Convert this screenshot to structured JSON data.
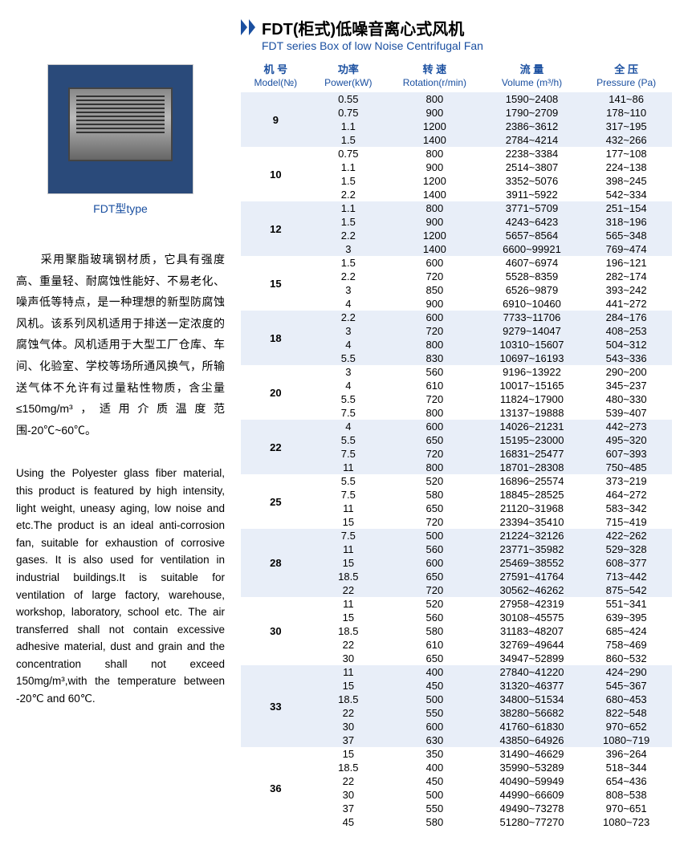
{
  "title_cn": "FDT(柜式)低噪音离心式风机",
  "title_en": "FDT series Box of low Noise Centrifugal Fan",
  "product_label": "FDT型type",
  "desc_cn": "　　采用聚脂玻璃钢材质，它具有强度高、重量轻、耐腐蚀性能好、不易老化、噪声低等特点，是一种理想的新型防腐蚀风机。该系列风机适用于排送一定浓度的腐蚀气体。风机适用于大型工厂仓库、车间、化验室、学校等场所通风换气，所输送气体不允许有过量粘性物质，含尘量≤150mg/m³，适用介质温度范围-20℃~60℃。",
  "desc_en": "Using the Polyester glass fiber material, this product is featured by high intensity, light weight, uneasy aging, low noise and etc.The product is an ideal anti-corrosion fan, suitable for exhaustion of corrosive gases. It is also used for ventilation in industrial buildings.It is suitable for ventilation of large factory, warehouse, workshop, laboratory, school etc. The air transferred shall not contain excessive adhesive material, dust and grain and the concentration shall not exceed 150mg/m³,with the temperature between -20℃ and 60℃.",
  "columns": [
    {
      "cn": "机 号",
      "en": "Model(№)"
    },
    {
      "cn": "功率",
      "en": "Power(kW)"
    },
    {
      "cn": "转 速",
      "en": "Rotation(r/min)"
    },
    {
      "cn": "流 量",
      "en": "Volume (m³/h)"
    },
    {
      "cn": "全 压",
      "en": "Pressure (Pa)"
    }
  ],
  "colors": {
    "accent": "#1a4fa0",
    "stripe_a": "#e8eef8",
    "stripe_b": "#ffffff"
  },
  "groups": [
    {
      "model": "9",
      "rows": [
        {
          "power": "0.55",
          "rot": "800",
          "vol": "1590~2408",
          "pres": "141~86"
        },
        {
          "power": "0.75",
          "rot": "900",
          "vol": "1790~2709",
          "pres": "178~110"
        },
        {
          "power": "1.1",
          "rot": "1200",
          "vol": "2386~3612",
          "pres": "317~195"
        },
        {
          "power": "1.5",
          "rot": "1400",
          "vol": "2784~4214",
          "pres": "432~266"
        }
      ]
    },
    {
      "model": "10",
      "rows": [
        {
          "power": "0.75",
          "rot": "800",
          "vol": "2238~3384",
          "pres": "177~108"
        },
        {
          "power": "1.1",
          "rot": "900",
          "vol": "2514~3807",
          "pres": "224~138"
        },
        {
          "power": "1.5",
          "rot": "1200",
          "vol": "3352~5076",
          "pres": "398~245"
        },
        {
          "power": "2.2",
          "rot": "1400",
          "vol": "3911~5922",
          "pres": "542~334"
        }
      ]
    },
    {
      "model": "12",
      "rows": [
        {
          "power": "1.1",
          "rot": "800",
          "vol": "3771~5709",
          "pres": "251~154"
        },
        {
          "power": "1.5",
          "rot": "900",
          "vol": "4243~6423",
          "pres": "318~196"
        },
        {
          "power": "2.2",
          "rot": "1200",
          "vol": "5657~8564",
          "pres": "565~348"
        },
        {
          "power": "3",
          "rot": "1400",
          "vol": "6600~99921",
          "pres": "769~474"
        }
      ]
    },
    {
      "model": "15",
      "rows": [
        {
          "power": "1.5",
          "rot": "600",
          "vol": "4607~6974",
          "pres": "196~121"
        },
        {
          "power": "2.2",
          "rot": "720",
          "vol": "5528~8359",
          "pres": "282~174"
        },
        {
          "power": "3",
          "rot": "850",
          "vol": "6526~9879",
          "pres": "393~242"
        },
        {
          "power": "4",
          "rot": "900",
          "vol": "6910~10460",
          "pres": "441~272"
        }
      ]
    },
    {
      "model": "18",
      "rows": [
        {
          "power": "2.2",
          "rot": "600",
          "vol": "7733~11706",
          "pres": "284~176"
        },
        {
          "power": "3",
          "rot": "720",
          "vol": "9279~14047",
          "pres": "408~253"
        },
        {
          "power": "4",
          "rot": "800",
          "vol": "10310~15607",
          "pres": "504~312"
        },
        {
          "power": "5.5",
          "rot": "830",
          "vol": "10697~16193",
          "pres": "543~336"
        }
      ]
    },
    {
      "model": "20",
      "rows": [
        {
          "power": "3",
          "rot": "560",
          "vol": "9196~13922",
          "pres": "290~200"
        },
        {
          "power": "4",
          "rot": "610",
          "vol": "10017~15165",
          "pres": "345~237"
        },
        {
          "power": "5.5",
          "rot": "720",
          "vol": "11824~17900",
          "pres": "480~330"
        },
        {
          "power": "7.5",
          "rot": "800",
          "vol": "13137~19888",
          "pres": "539~407"
        }
      ]
    },
    {
      "model": "22",
      "rows": [
        {
          "power": "4",
          "rot": "600",
          "vol": "14026~21231",
          "pres": "442~273"
        },
        {
          "power": "5.5",
          "rot": "650",
          "vol": "15195~23000",
          "pres": "495~320"
        },
        {
          "power": "7.5",
          "rot": "720",
          "vol": "16831~25477",
          "pres": "607~393"
        },
        {
          "power": "11",
          "rot": "800",
          "vol": "18701~28308",
          "pres": "750~485"
        }
      ]
    },
    {
      "model": "25",
      "rows": [
        {
          "power": "5.5",
          "rot": "520",
          "vol": "16896~25574",
          "pres": "373~219"
        },
        {
          "power": "7.5",
          "rot": "580",
          "vol": "18845~28525",
          "pres": "464~272"
        },
        {
          "power": "11",
          "rot": "650",
          "vol": "21120~31968",
          "pres": "583~342"
        },
        {
          "power": "15",
          "rot": "720",
          "vol": "23394~35410",
          "pres": "715~419"
        }
      ]
    },
    {
      "model": "28",
      "rows": [
        {
          "power": "7.5",
          "rot": "500",
          "vol": "21224~32126",
          "pres": "422~262"
        },
        {
          "power": "11",
          "rot": "560",
          "vol": "23771~35982",
          "pres": "529~328"
        },
        {
          "power": "15",
          "rot": "600",
          "vol": "25469~38552",
          "pres": "608~377"
        },
        {
          "power": "18.5",
          "rot": "650",
          "vol": "27591~41764",
          "pres": "713~442"
        },
        {
          "power": "22",
          "rot": "720",
          "vol": "30562~46262",
          "pres": "875~542"
        }
      ]
    },
    {
      "model": "30",
      "rows": [
        {
          "power": "11",
          "rot": "520",
          "vol": "27958~42319",
          "pres": "551~341"
        },
        {
          "power": "15",
          "rot": "560",
          "vol": "30108~45575",
          "pres": "639~395"
        },
        {
          "power": "18.5",
          "rot": "580",
          "vol": "31183~48207",
          "pres": "685~424"
        },
        {
          "power": "22",
          "rot": "610",
          "vol": "32769~49644",
          "pres": "758~469"
        },
        {
          "power": "30",
          "rot": "650",
          "vol": "34947~52899",
          "pres": "860~532"
        }
      ]
    },
    {
      "model": "33",
      "rows": [
        {
          "power": "11",
          "rot": "400",
          "vol": "27840~41220",
          "pres": "424~290"
        },
        {
          "power": "15",
          "rot": "450",
          "vol": "31320~46377",
          "pres": "545~367"
        },
        {
          "power": "18.5",
          "rot": "500",
          "vol": "34800~51534",
          "pres": "680~453"
        },
        {
          "power": "22",
          "rot": "550",
          "vol": "38280~56682",
          "pres": "822~548"
        },
        {
          "power": "30",
          "rot": "600",
          "vol": "41760~61830",
          "pres": "970~652"
        },
        {
          "power": "37",
          "rot": "630",
          "vol": "43850~64926",
          "pres": "1080~719"
        }
      ]
    },
    {
      "model": "36",
      "rows": [
        {
          "power": "15",
          "rot": "350",
          "vol": "31490~46629",
          "pres": "396~264"
        },
        {
          "power": "18.5",
          "rot": "400",
          "vol": "35990~53289",
          "pres": "518~344"
        },
        {
          "power": "22",
          "rot": "450",
          "vol": "40490~59949",
          "pres": "654~436"
        },
        {
          "power": "30",
          "rot": "500",
          "vol": "44990~66609",
          "pres": "808~538"
        },
        {
          "power": "37",
          "rot": "550",
          "vol": "49490~73278",
          "pres": "970~651"
        },
        {
          "power": "45",
          "rot": "580",
          "vol": "51280~77270",
          "pres": "1080~723"
        }
      ]
    }
  ]
}
